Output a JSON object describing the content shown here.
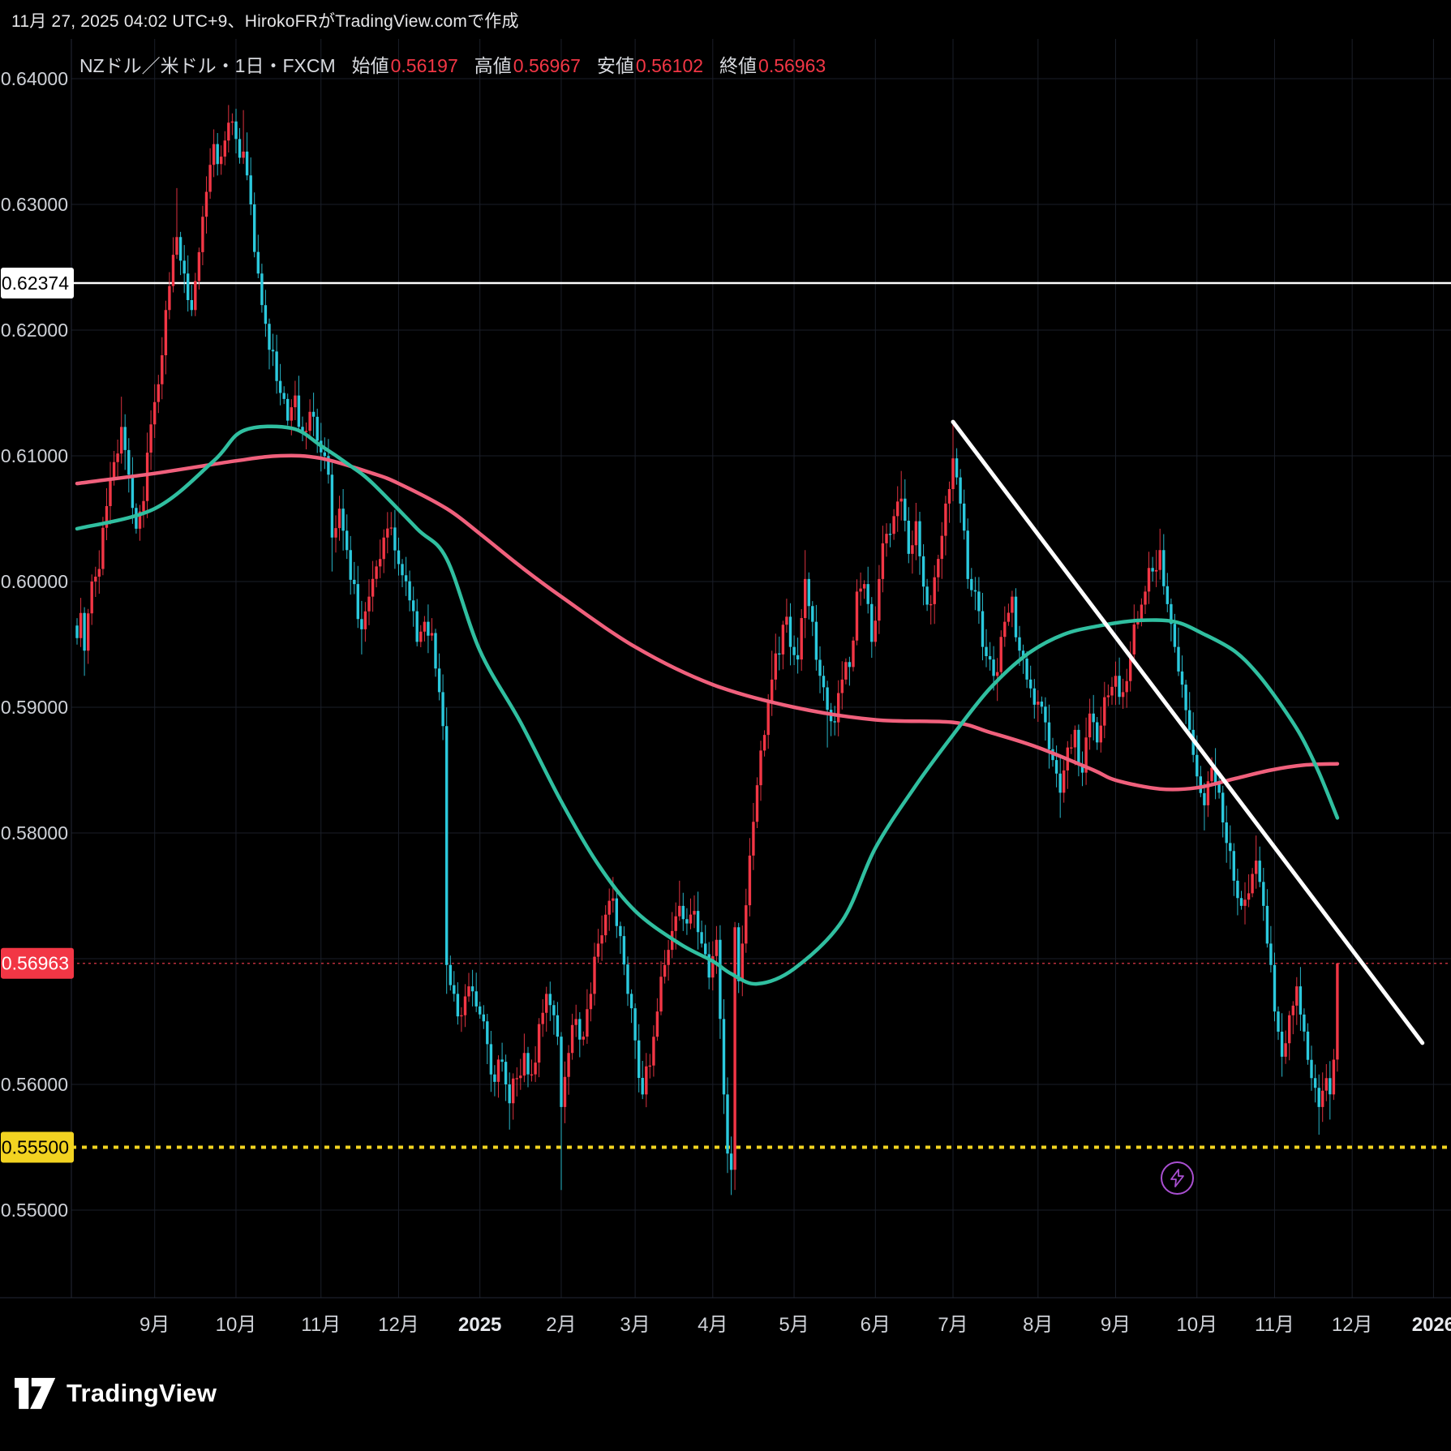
{
  "header": {
    "timestamp": "11月 27, 2025 04:02 UTC+9、HirokoFRがTradingView.comで作成"
  },
  "legend": {
    "title": "NZドル／米ドル・1日・FXCM",
    "items": [
      {
        "label": "始値",
        "value": "0.56197"
      },
      {
        "label": "高値",
        "value": "0.56967"
      },
      {
        "label": "安値",
        "value": "0.56102"
      },
      {
        "label": "終値",
        "value": "0.56963"
      }
    ]
  },
  "footer": {
    "logo_text": "TradingView"
  },
  "icons": {
    "flash": "lightning-icon",
    "logo": "tradingview-logo-icon"
  },
  "colors": {
    "background": "#000000",
    "grid": "#1a1e28",
    "axis_text": "#cfd2d8",
    "up_candle": "#f23645",
    "down_candle": "#2bc9dd",
    "ma_fast": "#30bfa0",
    "ma_slow": "#f0607c",
    "trendline": "#ffffff",
    "level_white": "#ffffff",
    "level_red": "#bb2f3d",
    "level_yellow": "#f2d321",
    "badge_white_bg": "#ffffff",
    "badge_red_bg": "#f23645",
    "badge_yellow_bg": "#f2d321"
  },
  "chart_data": {
    "type": "candlestick",
    "symbol": "NZドル／米ドル",
    "timeframe": "1日",
    "exchange": "FXCM",
    "last_ohlc": {
      "open": 0.56197,
      "high": 0.56967,
      "low": 0.56102,
      "close": 0.56963
    },
    "first_open": 0.5965,
    "y_axis": {
      "min": 0.5432,
      "max": 0.6424,
      "labels": [
        {
          "price": 0.64,
          "label": "0.64000"
        },
        {
          "price": 0.63,
          "label": "0.63000"
        },
        {
          "price": 0.62,
          "label": "0.62000"
        },
        {
          "price": 0.61,
          "label": "0.61000"
        },
        {
          "price": 0.6,
          "label": "0.60000"
        },
        {
          "price": 0.59,
          "label": "0.59000"
        },
        {
          "price": 0.58,
          "label": "0.58000"
        },
        {
          "price": 0.56,
          "label": "0.56000"
        },
        {
          "price": 0.55,
          "label": "0.55000"
        }
      ],
      "badges": [
        {
          "price": 0.62374,
          "label": "0.62374",
          "bg": "#ffffff",
          "fg": "#000000"
        },
        {
          "price": 0.56963,
          "label": "0.56963",
          "bg": "#f23645",
          "fg": "#ffffff"
        },
        {
          "price": 0.555,
          "label": "0.55500",
          "bg": "#f2d321",
          "fg": "#000000"
        }
      ]
    },
    "x_axis": {
      "months": [
        {
          "label": "9月",
          "i": 21
        },
        {
          "label": "10月",
          "i": 43
        },
        {
          "label": "11月",
          "i": 66
        },
        {
          "label": "12月",
          "i": 87
        },
        {
          "label": "2025",
          "i": 109,
          "bold": true
        },
        {
          "label": "2月",
          "i": 131
        },
        {
          "label": "3月",
          "i": 151
        },
        {
          "label": "4月",
          "i": 172
        },
        {
          "label": "5月",
          "i": 194
        },
        {
          "label": "6月",
          "i": 216
        },
        {
          "label": "7月",
          "i": 237
        },
        {
          "label": "8月",
          "i": 260
        },
        {
          "label": "9月",
          "i": 281
        },
        {
          "label": "10月",
          "i": 303
        },
        {
          "label": "11月",
          "i": 324
        },
        {
          "label": "12月",
          "i": 345
        },
        {
          "label": "2026",
          "i": 367,
          "bold": true
        }
      ]
    },
    "levels": [
      {
        "price": 0.62374,
        "style": "solid",
        "color": "#ffffff",
        "width": 2.5
      },
      {
        "price": 0.56963,
        "style": "dotted",
        "color": "#bb2f3d",
        "width": 1.5
      },
      {
        "price": 0.555,
        "style": "dashed",
        "color": "#f2d321",
        "width": 4
      }
    ],
    "trendline": {
      "i1": 237,
      "p1": 0.6127,
      "i2": 364,
      "p2": 0.5633,
      "color": "#ffffff",
      "width": 5
    },
    "candle_anchors": [
      [
        0,
        0.5955
      ],
      [
        1,
        0.5975
      ],
      [
        2,
        0.5945,
        null,
        0.5925
      ],
      [
        4,
        0.6
      ],
      [
        6,
        0.601
      ],
      [
        8,
        0.606
      ],
      [
        10,
        0.6095
      ],
      [
        12,
        0.6123,
        0.6147
      ],
      [
        14,
        0.6085
      ],
      [
        16,
        0.6042
      ],
      [
        18,
        0.6064
      ],
      [
        20,
        0.6125
      ],
      [
        23,
        0.618
      ],
      [
        25,
        0.6235
      ],
      [
        27,
        0.6274,
        0.6313
      ],
      [
        29,
        0.6245
      ],
      [
        31,
        0.6216
      ],
      [
        33,
        0.6262
      ],
      [
        35,
        0.631
      ],
      [
        37,
        0.6348
      ],
      [
        39,
        0.6338
      ],
      [
        41,
        0.6365,
        0.6379
      ],
      [
        43,
        0.6352
      ],
      [
        45,
        0.6342,
        0.6375
      ],
      [
        47,
        0.63
      ],
      [
        49,
        0.6245
      ],
      [
        51,
        0.6205
      ],
      [
        53,
        0.6183
      ],
      [
        55,
        0.615
      ],
      [
        57,
        0.6128
      ],
      [
        59,
        0.6148
      ],
      [
        61,
        0.6119
      ],
      [
        63,
        0.6135
      ],
      [
        65,
        0.6112
      ],
      [
        68,
        0.6085
      ],
      [
        69,
        0.6035,
        null,
        0.6008
      ],
      [
        71,
        0.6058
      ],
      [
        73,
        0.6025
      ],
      [
        75,
        0.5998
      ],
      [
        77,
        0.5962,
        null,
        0.5942
      ],
      [
        79,
        0.5988
      ],
      [
        81,
        0.6012
      ],
      [
        83,
        0.6035
      ],
      [
        85,
        0.6043
      ],
      [
        88,
        0.6005
      ],
      [
        90,
        0.5985
      ],
      [
        92,
        0.5952
      ],
      [
        94,
        0.5968
      ],
      [
        96,
        0.5959
      ],
      [
        98,
        0.5912
      ],
      [
        99,
        0.5885
      ],
      [
        100,
        0.5695,
        0.5898,
        0.5672
      ],
      [
        102,
        0.5672
      ],
      [
        104,
        0.5655
      ],
      [
        106,
        0.5678
      ],
      [
        108,
        0.5662
      ],
      [
        111,
        0.5632
      ],
      [
        113,
        0.5602
      ],
      [
        115,
        0.5618
      ],
      [
        117,
        0.5585,
        null,
        0.5564
      ],
      [
        119,
        0.5605
      ],
      [
        121,
        0.5625
      ],
      [
        123,
        0.5608
      ],
      [
        125,
        0.5648
      ],
      [
        127,
        0.5672
      ],
      [
        129,
        0.5655
      ],
      [
        130,
        0.5638
      ],
      [
        131,
        0.5582,
        null,
        0.5516
      ],
      [
        133,
        0.5625
      ],
      [
        135,
        0.5652
      ],
      [
        137,
        0.5638
      ],
      [
        139,
        0.5672
      ],
      [
        141,
        0.5712
      ],
      [
        143,
        0.5735
      ],
      [
        145,
        0.5748,
        0.5765
      ],
      [
        147,
        0.5718
      ],
      [
        149,
        0.5672
      ],
      [
        151,
        0.5635
      ],
      [
        153,
        0.5592
      ],
      [
        155,
        0.5615
      ],
      [
        157,
        0.5658
      ],
      [
        159,
        0.5695
      ],
      [
        161,
        0.5722
      ],
      [
        163,
        0.5742,
        0.5762
      ],
      [
        165,
        0.5728
      ],
      [
        167,
        0.5738
      ],
      [
        169,
        0.5712
      ],
      [
        171,
        0.5685
      ],
      [
        172,
        0.5702
      ],
      [
        173,
        0.5715
      ],
      [
        174,
        0.5652
      ],
      [
        175,
        0.5592
      ],
      [
        176,
        0.5545
      ],
      [
        177,
        0.5532,
        null,
        0.5512
      ],
      [
        178,
        0.5725
      ],
      [
        179,
        0.5682
      ],
      [
        180,
        0.5712
      ],
      [
        182,
        0.5782
      ],
      [
        184,
        0.5838
      ],
      [
        186,
        0.5878
      ],
      [
        188,
        0.5922,
        0.5945
      ],
      [
        190,
        0.5942
      ],
      [
        192,
        0.5972
      ],
      [
        193,
        0.5948
      ],
      [
        195,
        0.5938
      ],
      [
        197,
        0.6002,
        0.6025
      ],
      [
        199,
        0.5968
      ],
      [
        201,
        0.5925
      ],
      [
        203,
        0.5898,
        null,
        0.5868
      ],
      [
        205,
        0.5888
      ],
      [
        207,
        0.5922
      ],
      [
        209,
        0.5932
      ],
      [
        211,
        0.5992
      ],
      [
        213,
        0.5998
      ],
      [
        215,
        0.5952
      ],
      [
        217,
        0.6002
      ],
      [
        219,
        0.6038
      ],
      [
        221,
        0.6052
      ],
      [
        223,
        0.6066,
        0.6088
      ],
      [
        225,
        0.6022
      ],
      [
        227,
        0.6048
      ],
      [
        229,
        0.5996
      ],
      [
        231,
        0.5982
      ],
      [
        233,
        0.6018
      ],
      [
        235,
        0.6062
      ],
      [
        237,
        0.6098,
        0.6127
      ],
      [
        239,
        0.6062
      ],
      [
        241,
        0.6002
      ],
      [
        243,
        0.5992
      ],
      [
        245,
        0.5948
      ],
      [
        247,
        0.5938
      ],
      [
        249,
        0.5928,
        null,
        0.5905
      ],
      [
        251,
        0.5968
      ],
      [
        253,
        0.5988
      ],
      [
        255,
        0.5945
      ],
      [
        257,
        0.5922
      ],
      [
        259,
        0.5902
      ],
      [
        262,
        0.5888
      ],
      [
        264,
        0.5858
      ],
      [
        266,
        0.5832,
        null,
        0.5812
      ],
      [
        268,
        0.5868
      ],
      [
        270,
        0.5882
      ],
      [
        272,
        0.5848
      ],
      [
        274,
        0.5895
      ],
      [
        276,
        0.5872
      ],
      [
        278,
        0.5908
      ],
      [
        281,
        0.5925
      ],
      [
        283,
        0.5912
      ],
      [
        285,
        0.5942
      ],
      [
        287,
        0.5968
      ],
      [
        289,
        0.5992
      ],
      [
        291,
        0.6008
      ],
      [
        293,
        0.6025,
        0.6042
      ],
      [
        295,
        0.5982
      ],
      [
        297,
        0.5948
      ],
      [
        299,
        0.5918
      ],
      [
        301,
        0.5882
      ],
      [
        303,
        0.5845
      ],
      [
        305,
        0.5822,
        null,
        0.5802
      ],
      [
        307,
        0.5852
      ],
      [
        309,
        0.5832
      ],
      [
        311,
        0.5792
      ],
      [
        313,
        0.5762
      ],
      [
        315,
        0.5742
      ],
      [
        317,
        0.5752
      ],
      [
        319,
        0.5778,
        0.5798
      ],
      [
        321,
        0.5742
      ],
      [
        322,
        0.5712
      ],
      [
        323,
        0.5695
      ],
      [
        324,
        0.5658
      ],
      [
        326,
        0.5622
      ],
      [
        328,
        0.5655
      ],
      [
        330,
        0.5678
      ],
      [
        332,
        0.5642
      ],
      [
        334,
        0.5605
      ],
      [
        336,
        0.5582,
        null,
        0.556
      ],
      [
        337,
        0.5595
      ],
      [
        338,
        0.5605
      ],
      [
        339,
        0.5592,
        null,
        0.5572
      ],
      [
        340,
        0.56197
      ],
      [
        341,
        0.56963,
        0.56967,
        0.56102
      ]
    ],
    "ma_fast_points": [
      [
        0,
        0.6042
      ],
      [
        21,
        0.6058
      ],
      [
        37,
        0.6096
      ],
      [
        45,
        0.612
      ],
      [
        58,
        0.6122
      ],
      [
        66,
        0.6108
      ],
      [
        74,
        0.6092
      ],
      [
        80,
        0.6078
      ],
      [
        92,
        0.6042
      ],
      [
        100,
        0.6018
      ],
      [
        109,
        0.5945
      ],
      [
        120,
        0.5888
      ],
      [
        131,
        0.5825
      ],
      [
        141,
        0.5775
      ],
      [
        151,
        0.5738
      ],
      [
        163,
        0.5712
      ],
      [
        172,
        0.5698
      ],
      [
        177,
        0.5688
      ],
      [
        184,
        0.568
      ],
      [
        194,
        0.5692
      ],
      [
        207,
        0.573
      ],
      [
        216,
        0.5788
      ],
      [
        227,
        0.5838
      ],
      [
        237,
        0.5878
      ],
      [
        247,
        0.5915
      ],
      [
        257,
        0.5942
      ],
      [
        267,
        0.5958
      ],
      [
        277,
        0.5965
      ],
      [
        287,
        0.5969
      ],
      [
        297,
        0.5968
      ],
      [
        305,
        0.5958
      ],
      [
        313,
        0.5945
      ],
      [
        319,
        0.5928
      ],
      [
        325,
        0.5905
      ],
      [
        331,
        0.5878
      ],
      [
        336,
        0.5848
      ],
      [
        341,
        0.5812
      ]
    ],
    "ma_slow_points": [
      [
        0,
        0.6078
      ],
      [
        21,
        0.6086
      ],
      [
        43,
        0.6096
      ],
      [
        55,
        0.61
      ],
      [
        66,
        0.6098
      ],
      [
        80,
        0.6086
      ],
      [
        87,
        0.6078
      ],
      [
        100,
        0.6058
      ],
      [
        109,
        0.6038
      ],
      [
        120,
        0.6012
      ],
      [
        131,
        0.5988
      ],
      [
        151,
        0.5948
      ],
      [
        172,
        0.5918
      ],
      [
        194,
        0.59
      ],
      [
        216,
        0.589
      ],
      [
        237,
        0.5888
      ],
      [
        247,
        0.588
      ],
      [
        260,
        0.5868
      ],
      [
        275,
        0.585
      ],
      [
        281,
        0.5842
      ],
      [
        293,
        0.5835
      ],
      [
        303,
        0.5836
      ],
      [
        313,
        0.5843
      ],
      [
        323,
        0.585
      ],
      [
        332,
        0.5854
      ],
      [
        341,
        0.5855
      ]
    ]
  }
}
